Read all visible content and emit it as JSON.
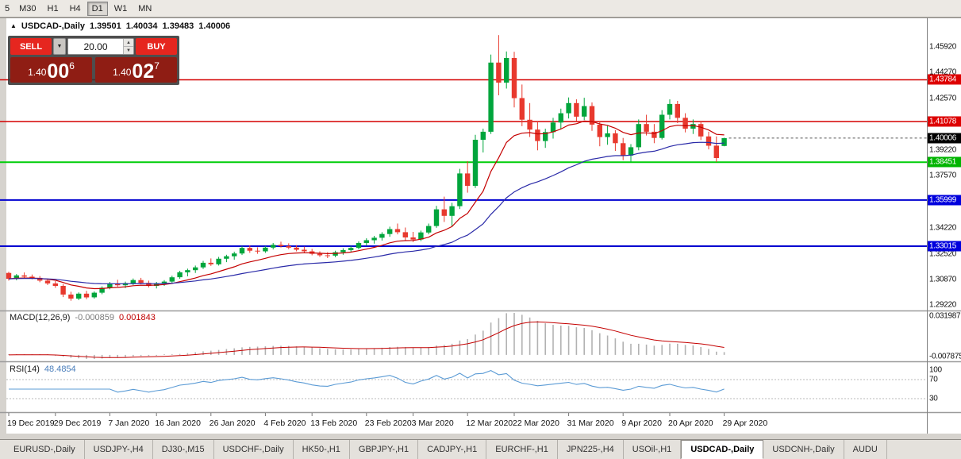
{
  "toolbar": {
    "timeframes": [
      "5",
      "M30",
      "H1",
      "H4",
      "D1",
      "W1",
      "MN"
    ],
    "active": "D1"
  },
  "title": {
    "symbol": "USDCAD-,Daily",
    "open": "1.39501",
    "high": "1.40034",
    "low": "1.39483",
    "close": "1.40006"
  },
  "trade_panel": {
    "sell_label": "SELL",
    "buy_label": "BUY",
    "volume": "20.00",
    "sell_price": {
      "base": "1.40",
      "pips": "00",
      "pipette": "6"
    },
    "buy_price": {
      "base": "1.40",
      "pips": "02",
      "pipette": "7"
    }
  },
  "chart_data": {
    "type": "candlestick",
    "title": "USDCAD-,Daily",
    "colors": {
      "up": "#00a53c",
      "down": "#e8392e",
      "ma_fast": "#c40000",
      "ma_slow": "#2a2aa8",
      "rsi": "#5b9bd5",
      "macd_hist": "#b2b2b2",
      "macd_signal": "#c40000",
      "bid_badge": "#000000"
    },
    "price_axis": {
      "top": 1.471,
      "bottom": 1.289,
      "ticks": [
        {
          "value": 1.4592,
          "label": "1.45920"
        },
        {
          "value": 1.4427,
          "label": "1.44270"
        },
        {
          "value": 1.4257,
          "label": "1.42570"
        },
        {
          "value": 1.3922,
          "label": "1.39220"
        },
        {
          "value": 1.3757,
          "label": "1.37570"
        },
        {
          "value": 1.3422,
          "label": "1.34220"
        },
        {
          "value": 1.3252,
          "label": "1.32520"
        },
        {
          "value": 1.3087,
          "label": "1.30870"
        },
        {
          "value": 1.2922,
          "label": "1.29220"
        }
      ],
      "badges": [
        {
          "value": 1.43784,
          "label": "1.43784",
          "color": "#dd0000"
        },
        {
          "value": 1.41078,
          "label": "1.41078",
          "color": "#dd0000"
        },
        {
          "value": 1.40006,
          "label": "1.40006",
          "color": "#000000"
        },
        {
          "value": 1.38451,
          "label": "1.38451",
          "color": "#00b400"
        },
        {
          "value": 1.35999,
          "label": "1.35999",
          "color": "#0000dd"
        },
        {
          "value": 1.33015,
          "label": "1.33015",
          "color": "#0000dd"
        }
      ]
    },
    "levels": [
      {
        "value": 1.43784,
        "color": "#d40000",
        "width": 1.5
      },
      {
        "value": 1.41078,
        "color": "#d40000",
        "width": 1.5
      },
      {
        "value": 1.38451,
        "color": "#00ce09",
        "width": 2
      },
      {
        "value": 1.35999,
        "color": "#0000d0",
        "width": 2
      },
      {
        "value": 1.33015,
        "color": "#0000d0",
        "width": 2
      }
    ],
    "candles": [
      [
        1.3128,
        1.3136,
        1.3078,
        1.309
      ],
      [
        1.309,
        1.3121,
        1.308,
        1.3112
      ],
      [
        1.3112,
        1.3131,
        1.3095,
        1.3104
      ],
      [
        1.3104,
        1.3118,
        1.3087,
        1.3096
      ],
      [
        1.3096,
        1.3108,
        1.3068,
        1.3078
      ],
      [
        1.3078,
        1.3092,
        1.305,
        1.306
      ],
      [
        1.306,
        1.3075,
        1.3032,
        1.3044
      ],
      [
        1.3044,
        1.3056,
        1.2972,
        1.2988
      ],
      [
        1.2988,
        1.3006,
        1.2948,
        1.2962
      ],
      [
        1.2962,
        1.3002,
        1.2952,
        1.2994
      ],
      [
        1.2994,
        1.3012,
        1.2958,
        1.297
      ],
      [
        1.297,
        1.3008,
        1.2962,
        1.3
      ],
      [
        1.3,
        1.3041,
        1.299,
        1.3032
      ],
      [
        1.3032,
        1.307,
        1.3022,
        1.306
      ],
      [
        1.306,
        1.3084,
        1.3038,
        1.3048
      ],
      [
        1.3048,
        1.3072,
        1.303,
        1.3062
      ],
      [
        1.3062,
        1.3092,
        1.305,
        1.3082
      ],
      [
        1.3082,
        1.3096,
        1.3054,
        1.3064
      ],
      [
        1.3064,
        1.3078,
        1.3034,
        1.3044
      ],
      [
        1.3044,
        1.307,
        1.3028,
        1.306
      ],
      [
        1.306,
        1.3082,
        1.3044,
        1.3072
      ],
      [
        1.3072,
        1.311,
        1.306,
        1.31
      ],
      [
        1.31,
        1.3142,
        1.309,
        1.3132
      ],
      [
        1.3132,
        1.3156,
        1.3106,
        1.3146
      ],
      [
        1.3146,
        1.3176,
        1.3128,
        1.3164
      ],
      [
        1.3164,
        1.3206,
        1.3154,
        1.3194
      ],
      [
        1.3194,
        1.3222,
        1.3174,
        1.3184
      ],
      [
        1.3184,
        1.3232,
        1.3176,
        1.322
      ],
      [
        1.322,
        1.3246,
        1.3198,
        1.3236
      ],
      [
        1.3236,
        1.3266,
        1.3214,
        1.3254
      ],
      [
        1.3254,
        1.3302,
        1.3244,
        1.329
      ],
      [
        1.329,
        1.3306,
        1.3258,
        1.3272
      ],
      [
        1.3272,
        1.3294,
        1.3252,
        1.3268
      ],
      [
        1.3268,
        1.3302,
        1.3258,
        1.3292
      ],
      [
        1.3292,
        1.3322,
        1.328,
        1.331
      ],
      [
        1.331,
        1.333,
        1.3292,
        1.3302
      ],
      [
        1.3302,
        1.332,
        1.3282,
        1.3292
      ],
      [
        1.3292,
        1.3308,
        1.3268,
        1.3278
      ],
      [
        1.3278,
        1.3298,
        1.3258,
        1.3268
      ],
      [
        1.3268,
        1.3284,
        1.3242,
        1.3252
      ],
      [
        1.3252,
        1.3268,
        1.3232,
        1.3242
      ],
      [
        1.3242,
        1.3262,
        1.3224,
        1.324
      ],
      [
        1.324,
        1.3272,
        1.323,
        1.3262
      ],
      [
        1.3262,
        1.3288,
        1.3246,
        1.3276
      ],
      [
        1.3276,
        1.3302,
        1.326,
        1.329
      ],
      [
        1.329,
        1.3332,
        1.328,
        1.3322
      ],
      [
        1.3322,
        1.3352,
        1.3304,
        1.334
      ],
      [
        1.334,
        1.3368,
        1.3318,
        1.3356
      ],
      [
        1.3356,
        1.3392,
        1.3338,
        1.338
      ],
      [
        1.338,
        1.3428,
        1.3362,
        1.3412
      ],
      [
        1.3412,
        1.3448,
        1.3378,
        1.3392
      ],
      [
        1.3392,
        1.3422,
        1.3338,
        1.3358
      ],
      [
        1.3358,
        1.3394,
        1.3328,
        1.3344
      ],
      [
        1.3344,
        1.3402,
        1.3334,
        1.339
      ],
      [
        1.339,
        1.3448,
        1.3378,
        1.3432
      ],
      [
        1.3432,
        1.3562,
        1.342,
        1.354
      ],
      [
        1.354,
        1.3622,
        1.3458,
        1.3498
      ],
      [
        1.3498,
        1.3582,
        1.343,
        1.356
      ],
      [
        1.356,
        1.3802,
        1.3542,
        1.3772
      ],
      [
        1.3772,
        1.3852,
        1.3648,
        1.3692
      ],
      [
        1.3692,
        1.4022,
        1.3678,
        1.399
      ],
      [
        1.399,
        1.4062,
        1.3908,
        1.4042
      ],
      [
        1.4042,
        1.4542,
        1.4028,
        1.449
      ],
      [
        1.449,
        1.4668,
        1.4278,
        1.436
      ],
      [
        1.436,
        1.4562,
        1.4322,
        1.452
      ],
      [
        1.452,
        1.456,
        1.42,
        1.426
      ],
      [
        1.426,
        1.4348,
        1.4078,
        1.412
      ],
      [
        1.412,
        1.4228,
        1.4008,
        1.4056
      ],
      [
        1.4056,
        1.4108,
        1.3922,
        1.3982
      ],
      [
        1.3982,
        1.4062,
        1.3938,
        1.404
      ],
      [
        1.404,
        1.4132,
        1.3998,
        1.4102
      ],
      [
        1.4102,
        1.4192,
        1.4058,
        1.4162
      ],
      [
        1.4162,
        1.4264,
        1.4128,
        1.4228
      ],
      [
        1.4228,
        1.4252,
        1.4108,
        1.414
      ],
      [
        1.414,
        1.4262,
        1.4118,
        1.4208
      ],
      [
        1.4208,
        1.4232,
        1.4048,
        1.4088
      ],
      [
        1.4088,
        1.4112,
        1.3948,
        1.4008
      ],
      [
        1.4008,
        1.4082,
        1.3958,
        1.4032
      ],
      [
        1.4032,
        1.4052,
        1.3918,
        1.3968
      ],
      [
        1.3968,
        1.4002,
        1.3858,
        1.3888
      ],
      [
        1.3888,
        1.3962,
        1.3848,
        1.3942
      ],
      [
        1.3942,
        1.4122,
        1.3922,
        1.4092
      ],
      [
        1.4092,
        1.4152,
        1.4018,
        1.4042
      ],
      [
        1.4042,
        1.4092,
        1.3968,
        1.4002
      ],
      [
        1.4002,
        1.4182,
        1.3992,
        1.4152
      ],
      [
        1.4152,
        1.4252,
        1.4122,
        1.4222
      ],
      [
        1.4222,
        1.4242,
        1.4098,
        1.4132
      ],
      [
        1.4132,
        1.4162,
        1.4038,
        1.4062
      ],
      [
        1.4062,
        1.4122,
        1.4028,
        1.4092
      ],
      [
        1.4092,
        1.4112,
        1.3988,
        1.4012
      ],
      [
        1.4012,
        1.4042,
        1.3928,
        1.3952
      ],
      [
        1.3952,
        1.4012,
        1.3846,
        1.3872
      ],
      [
        1.395,
        1.4003,
        1.3948,
        1.4001
      ]
    ],
    "x_labels": [
      {
        "index": 0,
        "label": "19 Dec 2019"
      },
      {
        "index": 6,
        "label": "29 Dec 2019"
      },
      {
        "index": 13,
        "label": "7 Jan 2020"
      },
      {
        "index": 19,
        "label": "16 Jan 2020"
      },
      {
        "index": 26,
        "label": "26 Jan 2020"
      },
      {
        "index": 33,
        "label": "4 Feb 2020"
      },
      {
        "index": 39,
        "label": "13 Feb 2020"
      },
      {
        "index": 46,
        "label": "23 Feb 2020"
      },
      {
        "index": 52,
        "label": "3 Mar 2020"
      },
      {
        "index": 59,
        "label": "12 Mar 2020"
      },
      {
        "index": 65,
        "label": "22 Mar 2020"
      },
      {
        "index": 72,
        "label": "31 Mar 2020"
      },
      {
        "index": 79,
        "label": "9 Apr 2020"
      },
      {
        "index": 85,
        "label": "20 Apr 2020"
      },
      {
        "index": 92,
        "label": "29 Apr 2020"
      }
    ],
    "indicators": {
      "ma_fast_period": 12,
      "ma_slow_period": 33,
      "macd": {
        "label": "MACD(12,26,9)",
        "value_main": "-0.000859",
        "value_signal": "0.001843",
        "fast": 12,
        "slow": 26,
        "signal": 9,
        "axis_max": "0.031987",
        "axis_min": "-0.007875"
      },
      "rsi": {
        "label": "RSI(14)",
        "value": "48.4854",
        "period": 14,
        "levels": [
          100,
          70,
          30
        ],
        "axis_labels": [
          "100",
          "70",
          "30"
        ]
      }
    }
  },
  "tabs": {
    "items": [
      "EURUSD-,Daily",
      "USDJPY-,H4",
      "DJ30-,M15",
      "USDCHF-,Daily",
      "HK50-,H1",
      "GBPJPY-,H1",
      "CADJPY-,H1",
      "EURCHF-,H1",
      "JPN225-,H4",
      "USOil-,H1",
      "USDCAD-,Daily",
      "USDCNH-,Daily",
      "AUDU"
    ],
    "active": "USDCAD-,Daily"
  }
}
